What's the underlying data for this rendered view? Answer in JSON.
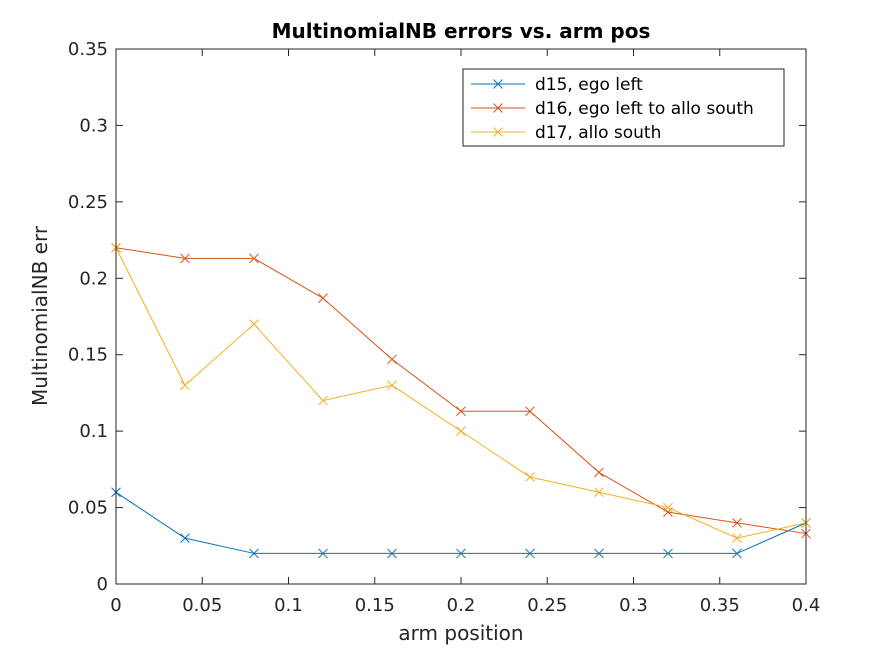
{
  "chart_data": {
    "type": "line",
    "title": "MultinomialNB errors vs. arm pos",
    "xlabel": "arm position",
    "ylabel": "MultinomialNB err",
    "xlim": [
      0,
      0.4
    ],
    "ylim": [
      0,
      0.35
    ],
    "xticks": [
      0,
      0.05,
      0.1,
      0.15,
      0.2,
      0.25,
      0.3,
      0.35,
      0.4
    ],
    "xtick_labels": [
      "0",
      "0.05",
      "0.1",
      "0.15",
      "0.2",
      "0.25",
      "0.3",
      "0.35",
      "0.4"
    ],
    "yticks": [
      0,
      0.05,
      0.1,
      0.15,
      0.2,
      0.25,
      0.3,
      0.35
    ],
    "ytick_labels": [
      "0",
      "0.05",
      "0.1",
      "0.15",
      "0.2",
      "0.25",
      "0.3",
      "0.35"
    ],
    "grid": false,
    "legend_position": "top-right",
    "marker": "x",
    "x": [
      0,
      0.04,
      0.08,
      0.12,
      0.16,
      0.2,
      0.24,
      0.28,
      0.32,
      0.36,
      0.4
    ],
    "series": [
      {
        "name": "d15, ego left",
        "color": "#0072BD",
        "values": [
          0.06,
          0.03,
          0.02,
          0.02,
          0.02,
          0.02,
          0.02,
          0.02,
          0.02,
          0.02,
          0.04
        ]
      },
      {
        "name": "d16, ego left to allo south",
        "color": "#D95319",
        "values": [
          0.22,
          0.213,
          0.213,
          0.187,
          0.147,
          0.113,
          0.113,
          0.073,
          0.047,
          0.04,
          0.033
        ]
      },
      {
        "name": "d17, allo south",
        "color": "#EDB120",
        "values": [
          0.22,
          0.13,
          0.17,
          0.12,
          0.13,
          0.1,
          0.07,
          0.06,
          0.05,
          0.03,
          0.04
        ]
      }
    ]
  }
}
